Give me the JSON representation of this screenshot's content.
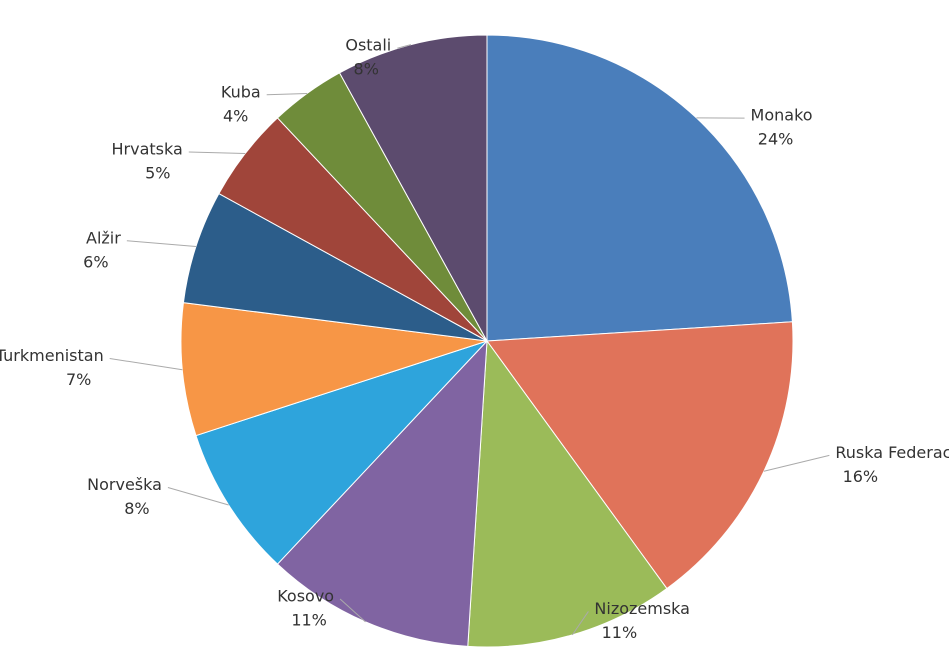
{
  "chart_data": {
    "type": "pie",
    "categories": [
      "Monako",
      "Ruska Federacija",
      "Nizozemska",
      "Kosovo",
      "Norveška",
      "Turkmenistan",
      "Alžir",
      "Hrvatska",
      "Kuba",
      "Ostali"
    ],
    "values": [
      24,
      16,
      11,
      11,
      8,
      7,
      6,
      5,
      4,
      8
    ],
    "value_labels": [
      "24%",
      "16%",
      "11%",
      "11%",
      "8%",
      "7%",
      "6%",
      "5%",
      "4%",
      "8%"
    ],
    "colors": [
      "#4a7ebb",
      "#e0735a",
      "#9bbb59",
      "#8064a2",
      "#2ea4dc",
      "#f79646",
      "#2c5d8a",
      "#a0453a",
      "#6f8c3a",
      "#5c4b6e"
    ]
  }
}
